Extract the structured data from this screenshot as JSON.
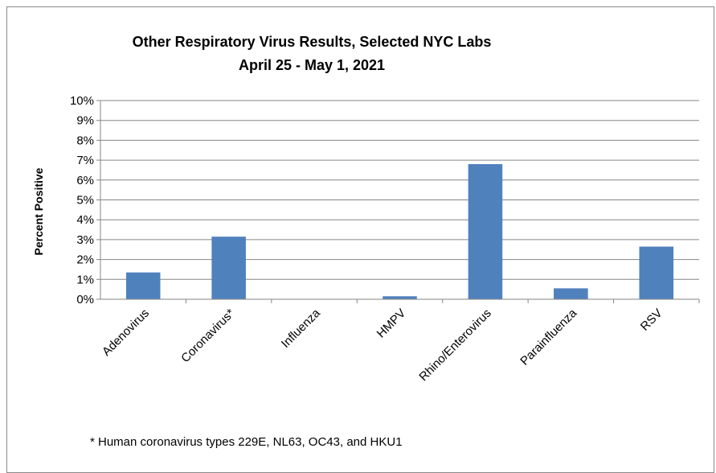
{
  "chart_data": {
    "type": "bar",
    "title": "Other Respiratory Virus Results, Selected NYC Labs",
    "subtitle": "April 25 - May 1, 2021",
    "xlabel": "",
    "ylabel": "Percent Positive",
    "ylim": [
      0,
      10
    ],
    "yticks": [
      "0%",
      "1%",
      "2%",
      "3%",
      "4%",
      "5%",
      "6%",
      "7%",
      "8%",
      "9%",
      "10%"
    ],
    "categories": [
      "Adenovirus",
      "Coronavirus*",
      "Influenza",
      "HMPV",
      "Rhino/Enterovirus",
      "Parainfluenza",
      "RSV"
    ],
    "values": [
      1.35,
      3.15,
      0.0,
      0.15,
      6.8,
      0.55,
      2.65
    ],
    "bar_color": "#4f81bd",
    "grid": true,
    "legend": "none"
  },
  "footnote": "* Human coronavirus types 229E, NL63, OC43, and HKU1"
}
